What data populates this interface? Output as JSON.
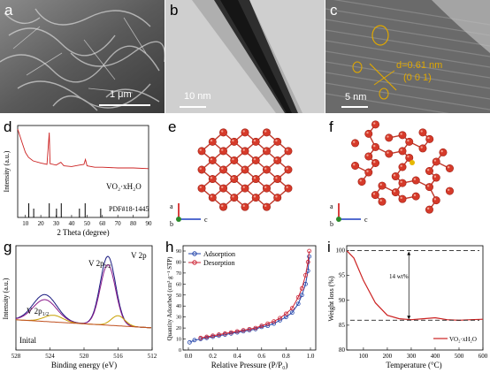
{
  "panels": {
    "a": {
      "label": "a",
      "scale": "1 μm"
    },
    "b": {
      "label": "b",
      "scale": "10 nm"
    },
    "c": {
      "label": "c",
      "scale": "5 nm",
      "annotation_d": "d=0.61 nm",
      "annotation_plane": "(0 0 1)"
    },
    "d": {
      "label": "d",
      "sample": "VO₂·xH₂O",
      "reference": "PDF#18-1445",
      "xlabel": "2 Theta (degree)",
      "ylabel": "Intensity (a.u.)",
      "xticks": [
        "10",
        "20",
        "30",
        "40",
        "50",
        "60",
        "70",
        "80",
        "90"
      ]
    },
    "e": {
      "label": "e",
      "axis_a": "a",
      "axis_b": "b",
      "axis_c": "c"
    },
    "f": {
      "label": "f",
      "axis_a": "a",
      "axis_b": "b",
      "axis_c": "c"
    },
    "g": {
      "label": "g",
      "title": "V 2p",
      "peak1": "V 2p",
      "peak1_sub": "3/2",
      "peak2": "V 2p",
      "peak2_sub": "1/2",
      "curve_label": "Inital",
      "xlabel": "Binding energy (eV)",
      "ylabel": "Intensity (a.u.)",
      "xticks": [
        "528",
        "524",
        "520",
        "516",
        "512"
      ]
    },
    "h": {
      "label": "h",
      "legend_ads": "Adsorption",
      "legend_des": "Desorption",
      "xlabel": "Relative Pressure (P/P₀)",
      "ylabel": "Quantity Adsorbed (cm³ g⁻¹ STP)",
      "xticks": [
        "0.0",
        "0.2",
        "0.4",
        "0.6",
        "0.8",
        "1.0"
      ],
      "yticks": [
        "0",
        "10",
        "20",
        "30",
        "40",
        "50",
        "60",
        "70",
        "80",
        "90"
      ]
    },
    "i": {
      "label": "i",
      "annotation": "14 wt%",
      "legend": "VO₂·xH₂O",
      "xlabel": "Temperature (°C)",
      "ylabel": "Weight loss (%)",
      "xticks": [
        "100",
        "200",
        "300",
        "400",
        "500",
        "600"
      ],
      "yticks": [
        "80",
        "85",
        "90",
        "95",
        "100"
      ]
    }
  },
  "chart_data": [
    {
      "type": "line",
      "panel": "d",
      "xlabel": "2 Theta (degree)",
      "ylabel": "Intensity (a.u.)",
      "xlim": [
        5,
        90
      ],
      "reference_peaks": [
        12.2,
        15.4,
        25.5,
        30.2,
        33.3,
        45.1,
        48.8,
        58.9
      ],
      "series": [
        {
          "name": "VO₂·xH₂O",
          "x": [
            5,
            8,
            10,
            12,
            15,
            20,
            24,
            25.5,
            26,
            30,
            33,
            35,
            40,
            45,
            48,
            49,
            50,
            55,
            60,
            70,
            80,
            90
          ],
          "y": [
            0.95,
            0.75,
            0.62,
            0.55,
            0.5,
            0.47,
            0.45,
            0.9,
            0.46,
            0.44,
            0.48,
            0.43,
            0.42,
            0.44,
            0.45,
            0.52,
            0.43,
            0.41,
            0.41,
            0.4,
            0.4,
            0.39
          ]
        }
      ]
    },
    {
      "type": "line",
      "panel": "h",
      "xlabel": "Relative Pressure (P/P₀)",
      "ylabel": "Quantity Adsorbed (cm³ g⁻¹ STP)",
      "xlim": [
        0,
        1
      ],
      "ylim": [
        0,
        90
      ],
      "series": [
        {
          "name": "Adsorption",
          "x": [
            0.01,
            0.05,
            0.1,
            0.15,
            0.2,
            0.25,
            0.3,
            0.35,
            0.4,
            0.45,
            0.5,
            0.55,
            0.6,
            0.65,
            0.7,
            0.75,
            0.8,
            0.85,
            0.9,
            0.93,
            0.96,
            0.98,
            0.99
          ],
          "y": [
            7,
            9,
            10,
            11,
            12,
            13,
            14,
            15,
            16,
            17,
            18,
            19,
            21,
            22,
            24,
            27,
            30,
            34,
            42,
            50,
            60,
            72,
            85
          ]
        },
        {
          "name": "Desorption",
          "x": [
            0.99,
            0.98,
            0.96,
            0.93,
            0.9,
            0.85,
            0.8,
            0.75,
            0.7,
            0.65,
            0.6,
            0.55,
            0.5,
            0.45,
            0.4,
            0.35,
            0.3,
            0.25,
            0.2,
            0.15,
            0.1
          ],
          "y": [
            90,
            80,
            68,
            56,
            48,
            38,
            33,
            29,
            26,
            24,
            22,
            20,
            19,
            18,
            17,
            16,
            15,
            14,
            13,
            12,
            11
          ]
        }
      ]
    },
    {
      "type": "line",
      "panel": "i",
      "xlabel": "Temperature (°C)",
      "ylabel": "Weight loss (%)",
      "xlim": [
        30,
        600
      ],
      "ylim": [
        80,
        101
      ],
      "series": [
        {
          "name": "VO₂·xH₂O",
          "x": [
            30,
            60,
            100,
            150,
            200,
            250,
            300,
            350,
            400,
            450,
            500,
            550,
            600
          ],
          "y": [
            100,
            98.5,
            94,
            89.5,
            87,
            86.3,
            86.1,
            86.3,
            86.5,
            86.1,
            86,
            86.1,
            86.2
          ]
        }
      ]
    }
  ]
}
